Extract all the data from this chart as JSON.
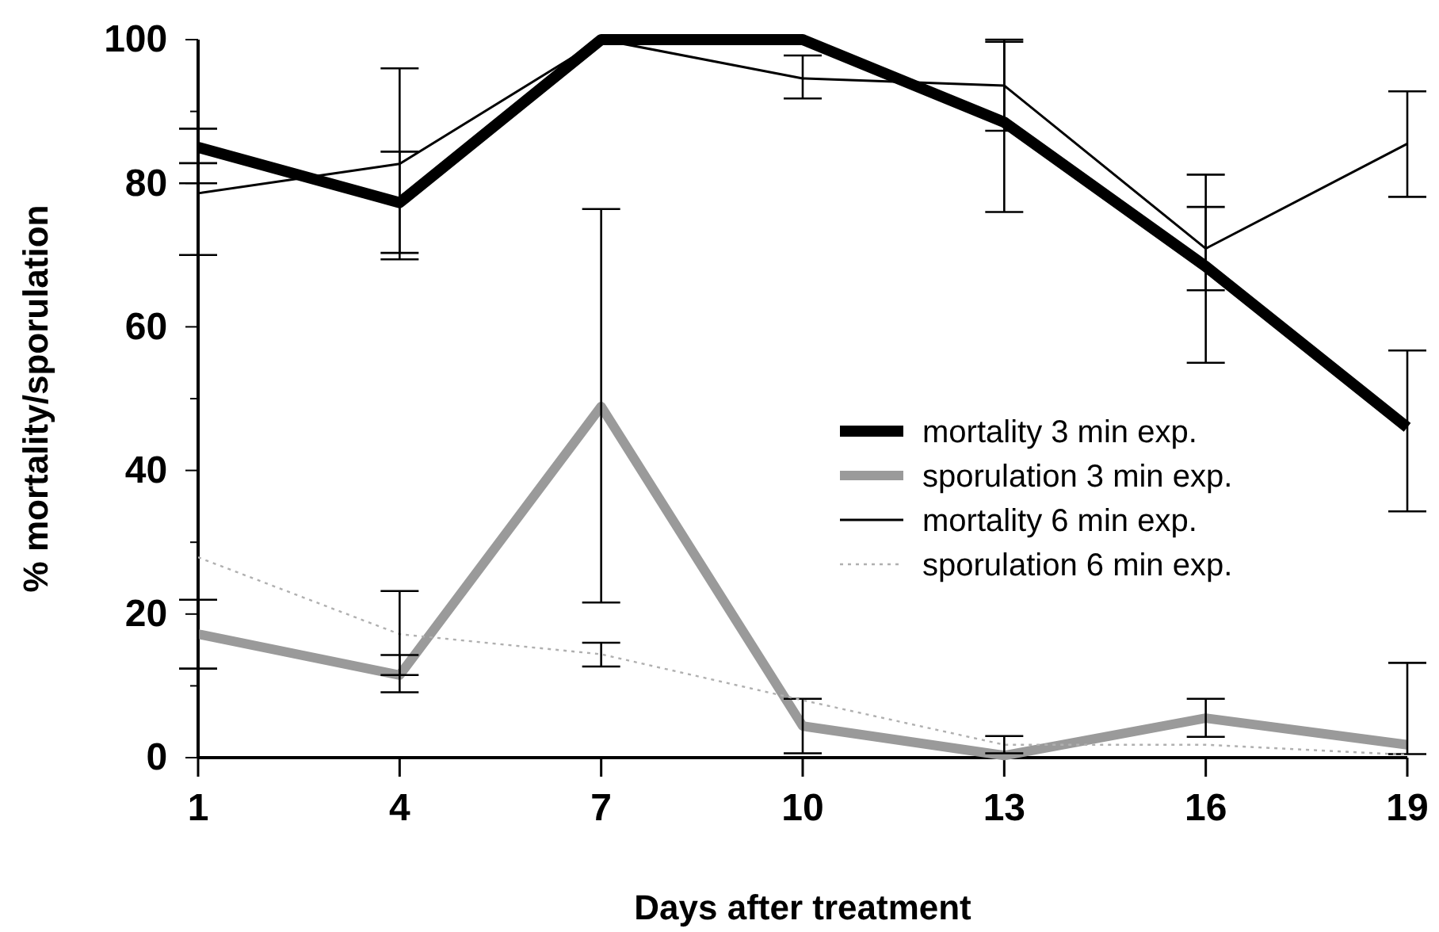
{
  "chart_data": {
    "type": "line",
    "xlabel": "Days after treatment",
    "ylabel": "% mortality/sporulation",
    "x": [
      1,
      4,
      7,
      10,
      13,
      16,
      19
    ],
    "xlim": [
      1,
      19
    ],
    "xticks": [
      1,
      4,
      7,
      10,
      13,
      16,
      19
    ],
    "ylim": [
      0,
      100
    ],
    "yticks": [
      0,
      {
        "value": 10,
        "label": null
      },
      20,
      {
        "value": 30,
        "label": null
      },
      40,
      {
        "value": 50,
        "label": null
      },
      60,
      {
        "value": 70,
        "label": null
      },
      80,
      {
        "value": 90,
        "label": null
      },
      100
    ],
    "grid": false,
    "legend": "right",
    "marker": "none",
    "series": [
      {
        "name": "mortality 3 min exp.",
        "color": "#000000",
        "line_style": "solid",
        "values": [
          85,
          77.3,
          100,
          100,
          88.5,
          68.4,
          46
        ],
        "errors": [
          [
            82.8,
            87.6
          ],
          [
            69.4,
            84.4
          ],
          null,
          null,
          [
            76,
            100
          ],
          [
            55,
            81.2
          ],
          [
            34.3,
            56.7
          ]
        ]
      },
      {
        "name": "sporulation 3 min exp.",
        "color": "#9a9a9a",
        "line_style": "solid",
        "values": [
          17.2,
          11.5,
          48.9,
          4.4,
          0.3,
          5.5,
          1.8
        ],
        "errors": [
          [
            12.4,
            22
          ],
          [
            9.1,
            14.3
          ],
          [
            21.6,
            76.4
          ],
          [
            0.6,
            8.2
          ],
          null,
          [
            2.9,
            8.2
          ],
          [
            0.5,
            13.2
          ]
        ]
      },
      {
        "name": "mortality 6 min exp.",
        "color": "#000000",
        "line_style": "solid",
        "values": [
          78.6,
          82.7,
          100,
          94.6,
          93.6,
          70.9,
          85.5
        ],
        "errors": [
          [
            70,
            80
          ],
          [
            70.3,
            96
          ],
          null,
          [
            91.8,
            97.8
          ],
          [
            87.3,
            99.7
          ],
          [
            65.1,
            76.7
          ],
          [
            78.1,
            92.8
          ]
        ]
      },
      {
        "name": "sporulation 6 min exp.",
        "color": "#b0b0b0",
        "line_style": "dotted",
        "values": [
          27.9,
          17.2,
          14.4,
          8,
          1.8,
          1.8,
          0.4
        ],
        "errors": [
          null,
          [
            11.5,
            23.2
          ],
          [
            12.7,
            16
          ],
          null,
          [
            0.6,
            3
          ],
          null,
          null
        ]
      }
    ]
  }
}
